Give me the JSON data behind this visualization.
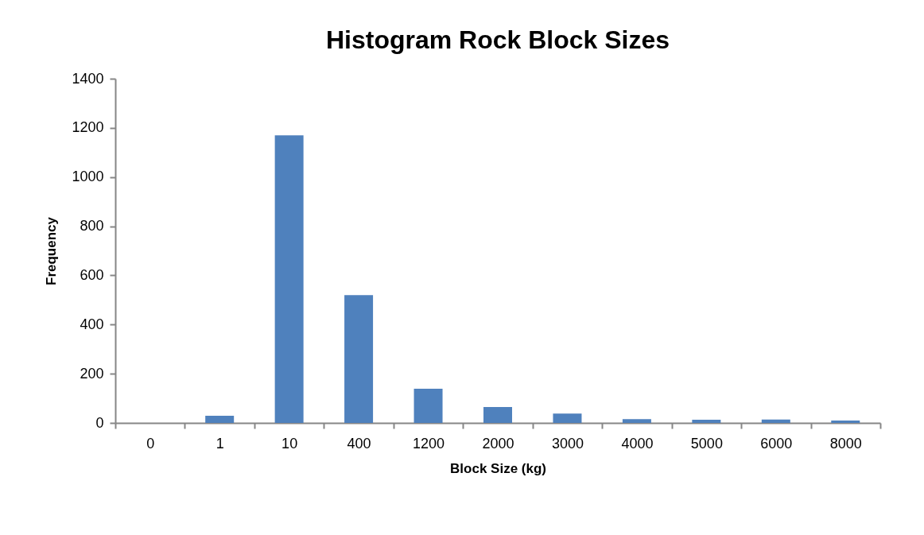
{
  "chart_data": {
    "type": "bar",
    "title": "Histogram Rock Block Sizes",
    "xlabel": "Block Size (kg)",
    "ylabel": "Frequency",
    "categories": [
      "0",
      "1",
      "10",
      "400",
      "1200",
      "2000",
      "3000",
      "4000",
      "5000",
      "6000",
      "8000"
    ],
    "values": [
      0,
      29,
      1170,
      520,
      139,
      65,
      38,
      15,
      13,
      14,
      10
    ],
    "color": "#4f81bd",
    "ylim": [
      0,
      1400
    ],
    "yticks": [
      0,
      200,
      400,
      600,
      800,
      1000,
      1200,
      1400
    ],
    "grid": false
  }
}
